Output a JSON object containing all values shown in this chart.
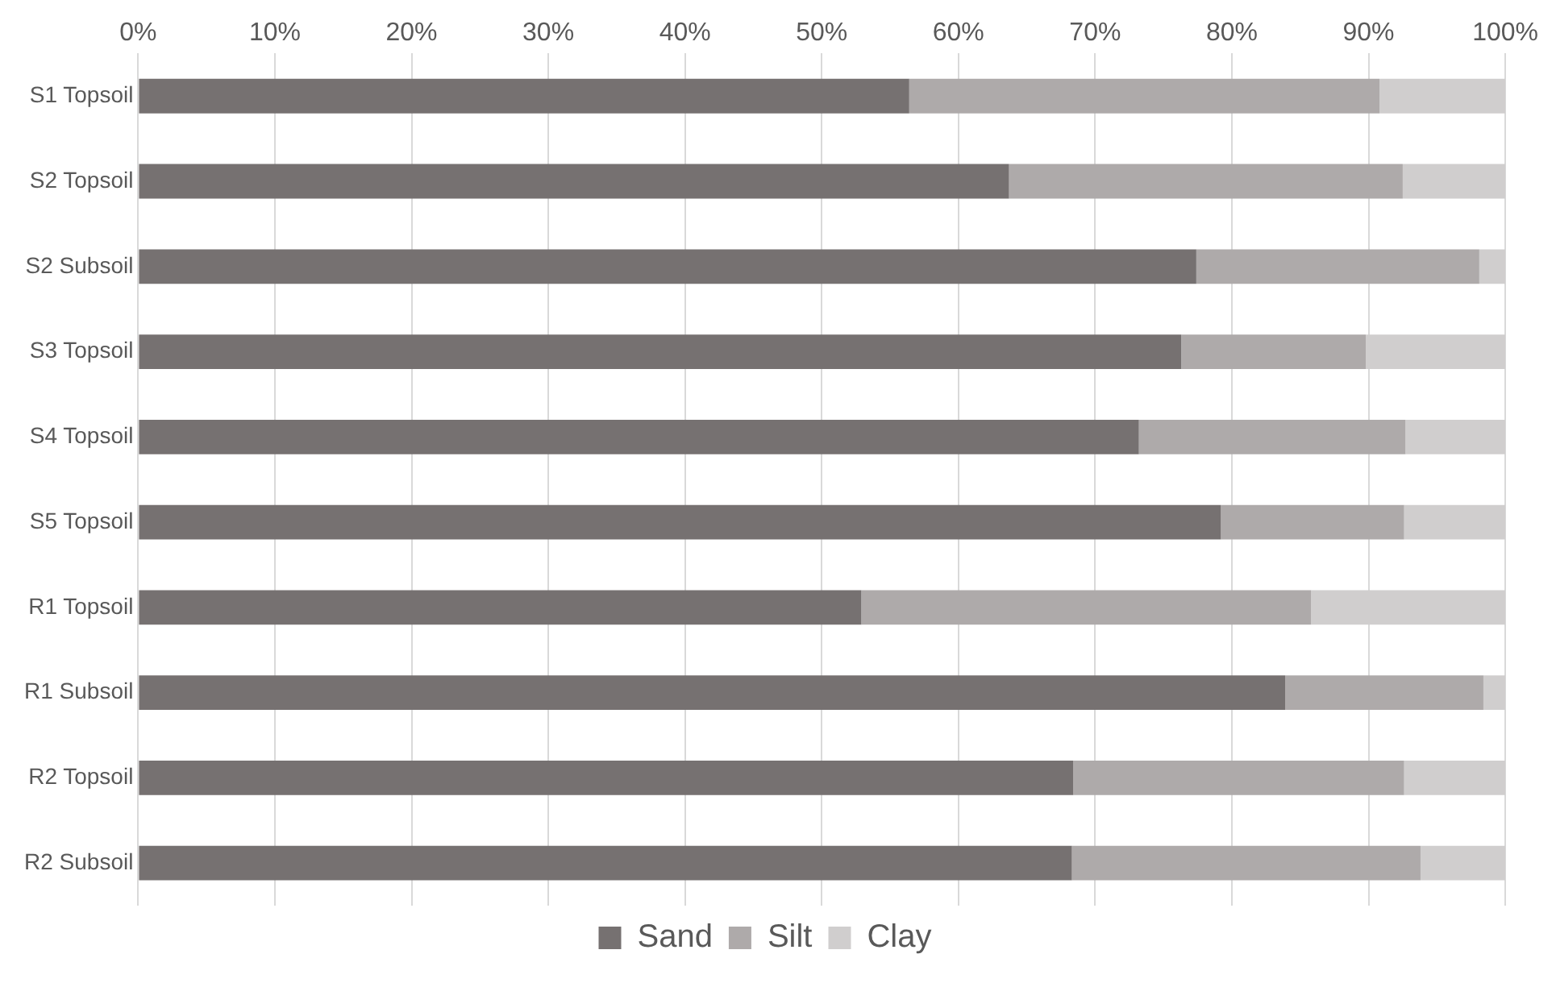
{
  "chart_data": {
    "type": "bar",
    "orientation": "horizontal",
    "stacked": true,
    "categories": [
      "S1 Topsoil",
      "S2 Topsoil",
      "S2 Subsoil",
      "S3 Topsoil",
      "S4 Topsoil",
      "S5 Topsoil",
      "R1 Topsoil",
      "R1 Subsoil",
      "R2 Topsoil",
      "R2 Subsoil"
    ],
    "series": [
      {
        "name": "Sand",
        "color": "#767171",
        "values": [
          56.4,
          63.7,
          77.4,
          76.3,
          73.2,
          79.2,
          52.9,
          83.9,
          68.4,
          68.3
        ]
      },
      {
        "name": "Silt",
        "color": "#aeaaaa",
        "values": [
          34.4,
          28.8,
          20.7,
          13.5,
          19.5,
          13.4,
          32.9,
          14.5,
          24.2,
          25.5
        ]
      },
      {
        "name": "Clay",
        "color": "#d0cece",
        "values": [
          9.2,
          7.5,
          1.9,
          10.2,
          7.3,
          7.4,
          14.2,
          1.6,
          7.4,
          6.2
        ]
      }
    ],
    "xlim": [
      0,
      100
    ],
    "xticks": [
      {
        "value": 0,
        "label": "0%"
      },
      {
        "value": 10,
        "label": "10%"
      },
      {
        "value": 20,
        "label": "20%"
      },
      {
        "value": 30,
        "label": "30%"
      },
      {
        "value": 40,
        "label": "40%"
      },
      {
        "value": 50,
        "label": "50%"
      },
      {
        "value": 60,
        "label": "60%"
      },
      {
        "value": 70,
        "label": "70%"
      },
      {
        "value": 80,
        "label": "80%"
      },
      {
        "value": 90,
        "label": "90%"
      },
      {
        "value": 100,
        "label": "100%"
      }
    ],
    "grid": "x",
    "legend": "bottom"
  }
}
